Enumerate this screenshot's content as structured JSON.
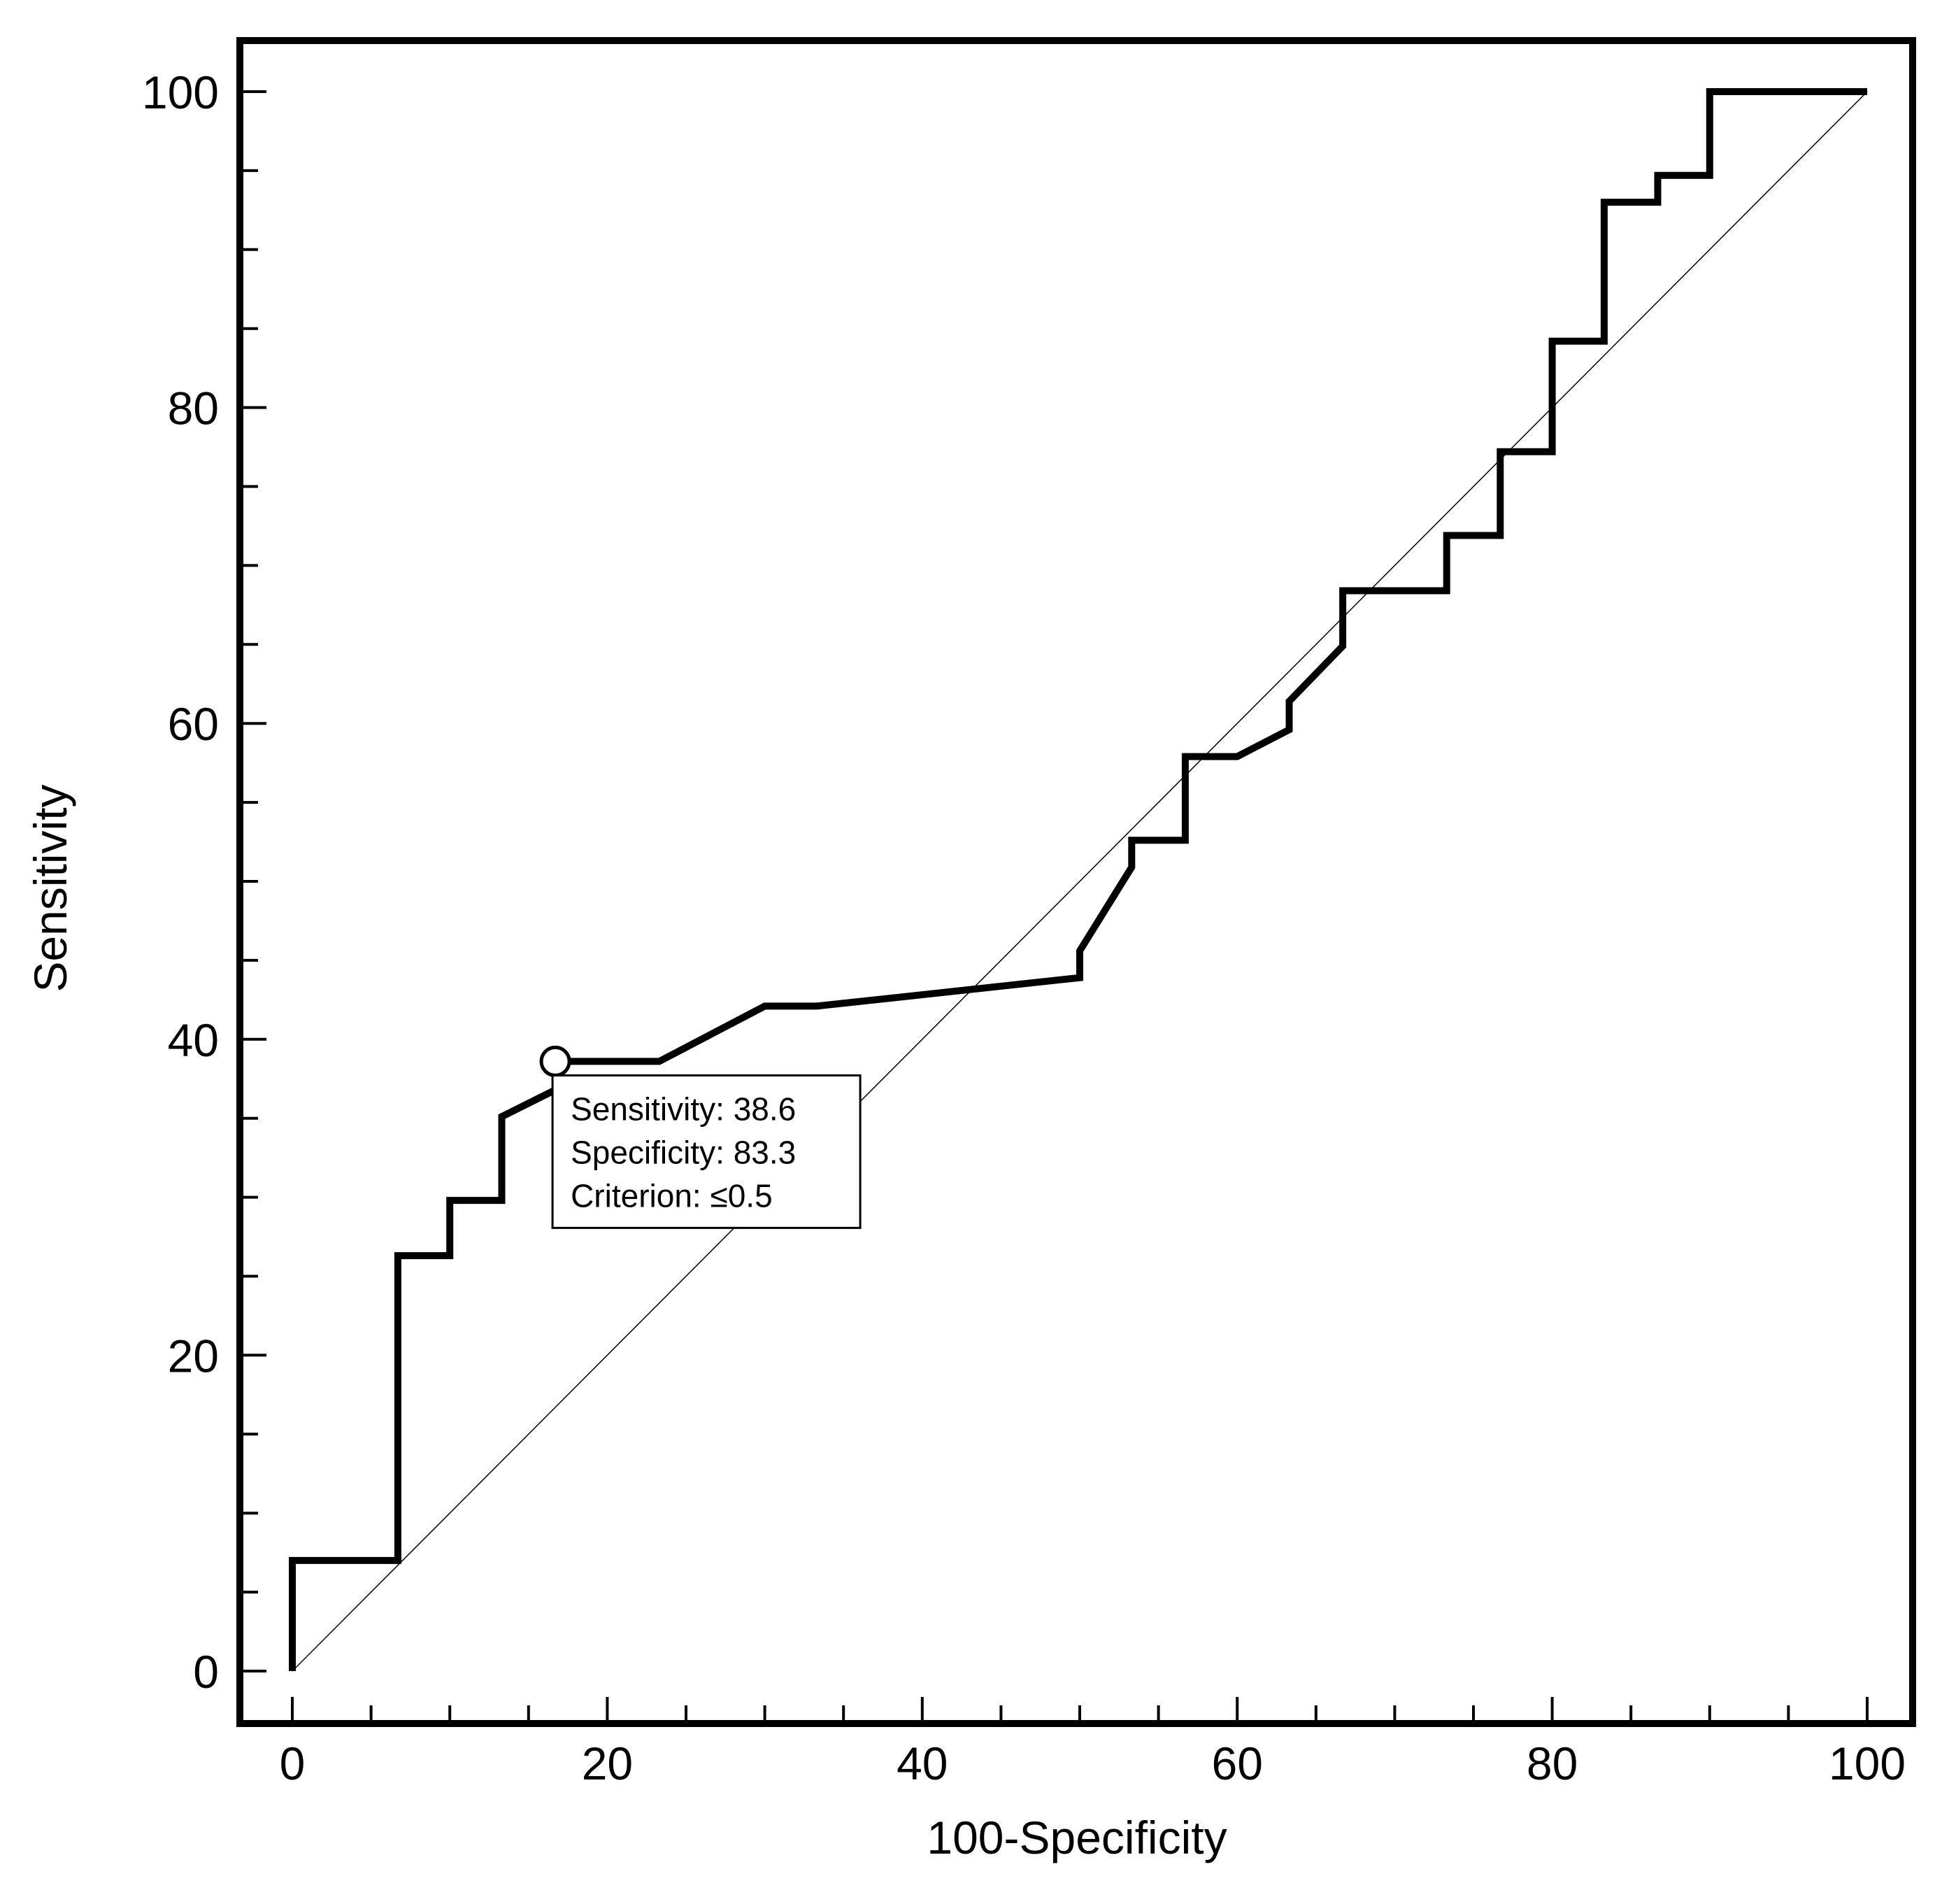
{
  "chart_data": {
    "type": "line",
    "title": "",
    "xlabel": "100-Specificity",
    "ylabel": "Sensitivity",
    "xlim": [
      0,
      100
    ],
    "ylim": [
      0,
      100
    ],
    "xticks_major": [
      0,
      20,
      40,
      60,
      80,
      100
    ],
    "xticks_minor": [
      5,
      10,
      15,
      25,
      30,
      35,
      45,
      50,
      55,
      65,
      70,
      75,
      85,
      90,
      95
    ],
    "yticks_major": [
      0,
      20,
      40,
      60,
      80,
      100
    ],
    "yticks_minor": [
      5,
      10,
      15,
      25,
      30,
      35,
      45,
      50,
      55,
      65,
      70,
      75,
      85,
      90,
      95
    ],
    "grid": false,
    "reference_line": {
      "name": "chance diagonal",
      "points": [
        [
          0,
          0
        ],
        [
          100,
          100
        ]
      ]
    },
    "series": [
      {
        "name": "ROC curve",
        "points": [
          [
            0,
            0
          ],
          [
            0,
            7
          ],
          [
            6.7,
            7
          ],
          [
            6.7,
            26.3
          ],
          [
            10,
            26.3
          ],
          [
            10,
            29.8
          ],
          [
            13.3,
            29.8
          ],
          [
            13.3,
            35.1
          ],
          [
            16.7,
            36.8
          ],
          [
            16.7,
            38.6
          ],
          [
            23.3,
            38.6
          ],
          [
            30,
            42.1
          ],
          [
            33.3,
            42.1
          ],
          [
            50,
            43.9
          ],
          [
            50,
            45.6
          ],
          [
            53.3,
            50.9
          ],
          [
            53.3,
            52.6
          ],
          [
            56.7,
            52.6
          ],
          [
            56.7,
            57.9
          ],
          [
            60,
            57.9
          ],
          [
            63.3,
            59.6
          ],
          [
            63.3,
            61.4
          ],
          [
            66.7,
            64.9
          ],
          [
            66.7,
            68.4
          ],
          [
            73.3,
            68.4
          ],
          [
            73.3,
            71.9
          ],
          [
            76.7,
            71.9
          ],
          [
            76.7,
            77.2
          ],
          [
            80,
            77.2
          ],
          [
            80,
            84.2
          ],
          [
            83.3,
            84.2
          ],
          [
            83.3,
            93
          ],
          [
            86.7,
            93
          ],
          [
            86.7,
            94.7
          ],
          [
            90,
            94.7
          ],
          [
            90,
            100
          ],
          [
            100,
            100
          ]
        ]
      }
    ],
    "highlight_point": {
      "x": 16.7,
      "y": 38.6
    },
    "annotation": {
      "sensitivity_label": "Sensitivity: 38.6",
      "specificity_label": "Specificity: 83.3",
      "criterion_label": "Criterion: ≤0.5"
    }
  }
}
